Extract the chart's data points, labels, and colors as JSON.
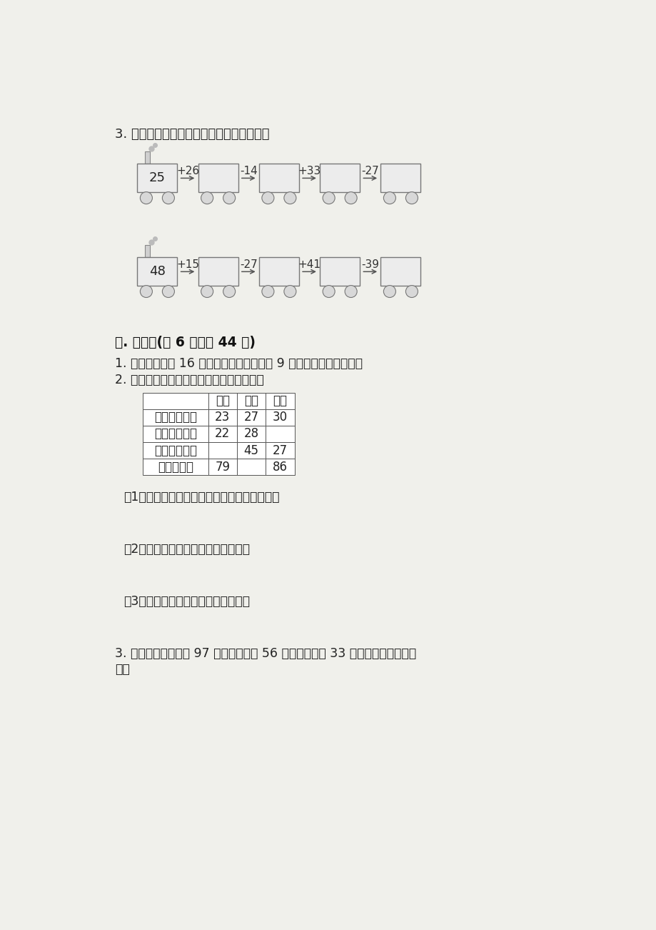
{
  "bg_color": "#f0f0eb",
  "title_q3": "3. 开火车。（在每节车厢上填出合适的数）",
  "train1": {
    "start": "25",
    "ops": [
      "+26",
      "-14",
      "+33",
      "-27"
    ]
  },
  "train2": {
    "start": "48",
    "ops": [
      "+15",
      "-27",
      "+41",
      "-39"
    ]
  },
  "section5_title": "五. 解答题(共 6 题，共 44 分)",
  "q1_text": "1. 学校跳远队有 16 人，长跑队比跳远队多 9 人。长跑队有多少人？",
  "q2_intro": "2. 下面是三个小组三天的销售情况统计表。",
  "table_headers": [
    "",
    "一组",
    "二组",
    "三组"
  ],
  "table_rows": [
    [
      "第一天（个）",
      "23",
      "27",
      "30"
    ],
    [
      "第二天（个）",
      "22",
      "28",
      ""
    ],
    [
      "第三天（个）",
      "",
      "45",
      "27"
    ],
    [
      "合计（个）",
      "79",
      "",
      "86"
    ]
  ],
  "sub_q1": "（1）算一算第二组三天一共卖出多少个西瓜？",
  "sub_q2": "（2）第一组第三天卖出多少个西瓜？",
  "sub_q3": "（3）第三组第二天卖出多少个西瓜？",
  "q3_text1": "3. 新华书店有科技书 97 本。上午卖出 56 本，下午卖出 33 本，还剩多少本科技",
  "q3_text2": "书？"
}
